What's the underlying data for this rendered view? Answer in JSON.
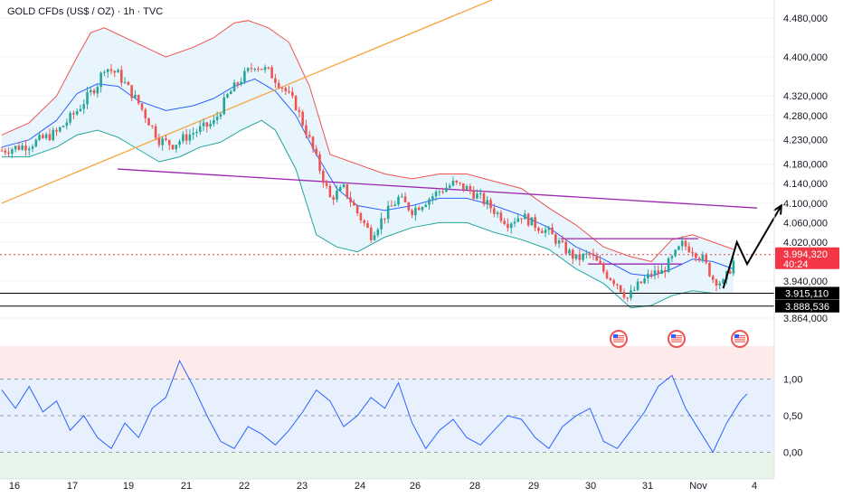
{
  "header": {
    "title": "GOLD CFDs (US$ / OZ) · 1h · TVC"
  },
  "colors": {
    "up": "#26a69a",
    "down": "#ef5350",
    "bb_upper": "#ef5350",
    "bb_lower": "#26a69a",
    "bb_basis": "#2962ff",
    "bb_fill": "#e3f2fd",
    "rising_line": "#f7a440",
    "falling_line": "#9c27b0",
    "rsi": "#2962ff",
    "price_label": "#f23645"
  },
  "icons": [
    "us-flag-icon",
    "us-flag-icon",
    "us-flag-icon"
  ],
  "chart_data": [
    {
      "type": "candlestick",
      "title": "GOLD CFDs (US$ / OZ) · 1h · TVC",
      "x_tick_labels": [
        "16",
        "17",
        "19",
        "21",
        "22",
        "23",
        "24",
        "26",
        "28",
        "29",
        "30",
        "31",
        "Nov",
        "4"
      ],
      "y_tick_labels": [
        "4.480,000",
        "4.400,000",
        "4.320,000",
        "4.280,000",
        "4.230,000",
        "4.180,000",
        "4.140,000",
        "4.100,000",
        "4.060,000",
        "4.020,000",
        "3.940,000",
        "3.864,000"
      ],
      "ylim": [
        3850,
        4520
      ],
      "current_price": {
        "value": "3.994,320",
        "countdown": "40:24"
      },
      "support_levels": [
        {
          "label": "3.915,110",
          "value": 3915.11
        },
        {
          "label": "3.888,536",
          "value": 3888.536
        }
      ],
      "close_path": [
        [
          0,
          4208
        ],
        [
          8,
          4220
        ],
        [
          16,
          4245
        ],
        [
          22,
          4290
        ],
        [
          28,
          4345
        ],
        [
          30,
          4380
        ],
        [
          34,
          4365
        ],
        [
          40,
          4305
        ],
        [
          46,
          4230
        ],
        [
          50,
          4220
        ],
        [
          56,
          4245
        ],
        [
          62,
          4265
        ],
        [
          66,
          4320
        ],
        [
          70,
          4355
        ],
        [
          74,
          4385
        ],
        [
          78,
          4370
        ],
        [
          82,
          4340
        ],
        [
          86,
          4300
        ],
        [
          90,
          4230
        ],
        [
          94,
          4150
        ],
        [
          96,
          4110
        ],
        [
          100,
          4130
        ],
        [
          104,
          4080
        ],
        [
          108,
          4035
        ],
        [
          112,
          4075
        ],
        [
          116,
          4110
        ],
        [
          120,
          4085
        ],
        [
          124,
          4105
        ],
        [
          128,
          4125
        ],
        [
          132,
          4140
        ],
        [
          136,
          4130
        ],
        [
          140,
          4110
        ],
        [
          144,
          4085
        ],
        [
          148,
          4060
        ],
        [
          152,
          4075
        ],
        [
          156,
          4055
        ],
        [
          160,
          4040
        ],
        [
          164,
          4010
        ],
        [
          168,
          3985
        ],
        [
          172,
          3995
        ],
        [
          176,
          3960
        ],
        [
          180,
          3935
        ],
        [
          183,
          3905
        ],
        [
          186,
          3930
        ],
        [
          190,
          3955
        ],
        [
          193,
          3958
        ],
        [
          196,
          3985
        ],
        [
          199,
          4015
        ],
        [
          202,
          4005
        ],
        [
          205,
          3985
        ],
        [
          208,
          3945
        ],
        [
          211,
          3935
        ],
        [
          214,
          3980
        ]
      ],
      "bollinger_bands": {
        "upper": [
          [
            0,
            4240
          ],
          [
            8,
            4265
          ],
          [
            16,
            4320
          ],
          [
            22,
            4400
          ],
          [
            26,
            4450
          ],
          [
            30,
            4460
          ],
          [
            36,
            4440
          ],
          [
            42,
            4420
          ],
          [
            48,
            4400
          ],
          [
            56,
            4420
          ],
          [
            62,
            4440
          ],
          [
            68,
            4470
          ],
          [
            72,
            4475
          ],
          [
            78,
            4460
          ],
          [
            84,
            4430
          ],
          [
            90,
            4340
          ],
          [
            96,
            4200
          ],
          [
            104,
            4180
          ],
          [
            112,
            4160
          ],
          [
            120,
            4150
          ],
          [
            128,
            4160
          ],
          [
            136,
            4160
          ],
          [
            144,
            4145
          ],
          [
            152,
            4130
          ],
          [
            160,
            4090
          ],
          [
            168,
            4055
          ],
          [
            176,
            4010
          ],
          [
            184,
            3990
          ],
          [
            190,
            3980
          ],
          [
            196,
            4025
          ],
          [
            202,
            4035
          ],
          [
            208,
            4020
          ],
          [
            214,
            4005
          ]
        ],
        "basis": [
          [
            0,
            4215
          ],
          [
            8,
            4230
          ],
          [
            16,
            4270
          ],
          [
            22,
            4325
          ],
          [
            28,
            4345
          ],
          [
            34,
            4340
          ],
          [
            40,
            4310
          ],
          [
            48,
            4290
          ],
          [
            56,
            4300
          ],
          [
            62,
            4315
          ],
          [
            68,
            4340
          ],
          [
            74,
            4355
          ],
          [
            80,
            4330
          ],
          [
            86,
            4280
          ],
          [
            92,
            4200
          ],
          [
            98,
            4130
          ],
          [
            104,
            4095
          ],
          [
            112,
            4085
          ],
          [
            120,
            4095
          ],
          [
            128,
            4110
          ],
          [
            136,
            4110
          ],
          [
            144,
            4095
          ],
          [
            152,
            4075
          ],
          [
            160,
            4050
          ],
          [
            168,
            4010
          ],
          [
            176,
            3985
          ],
          [
            184,
            3955
          ],
          [
            190,
            3950
          ],
          [
            196,
            3965
          ],
          [
            202,
            3985
          ],
          [
            208,
            3980
          ],
          [
            214,
            3965
          ]
        ],
        "lower": [
          [
            0,
            4195
          ],
          [
            8,
            4195
          ],
          [
            16,
            4215
          ],
          [
            22,
            4240
          ],
          [
            28,
            4250
          ],
          [
            34,
            4235
          ],
          [
            40,
            4210
          ],
          [
            46,
            4185
          ],
          [
            52,
            4195
          ],
          [
            58,
            4215
          ],
          [
            64,
            4225
          ],
          [
            70,
            4250
          ],
          [
            76,
            4270
          ],
          [
            80,
            4250
          ],
          [
            86,
            4170
          ],
          [
            92,
            4035
          ],
          [
            98,
            4010
          ],
          [
            104,
            4000
          ],
          [
            112,
            4030
          ],
          [
            120,
            4050
          ],
          [
            128,
            4060
          ],
          [
            136,
            4060
          ],
          [
            144,
            4040
          ],
          [
            152,
            4025
          ],
          [
            160,
            4005
          ],
          [
            168,
            3965
          ],
          [
            176,
            3935
          ],
          [
            184,
            3885
          ],
          [
            190,
            3890
          ],
          [
            196,
            3910
          ],
          [
            202,
            3920
          ],
          [
            208,
            3915
          ],
          [
            214,
            3915
          ]
        ]
      },
      "trendlines": [
        {
          "name": "rising",
          "from": [
            0,
            4100
          ],
          "to": [
            146,
            4525
          ]
        },
        {
          "name": "falling",
          "from": [
            32,
            4170
          ],
          "to": [
            208,
            4090
          ]
        },
        {
          "name": "range-high",
          "from": [
            199,
            4027
          ],
          "to": [
            193.5,
            4027
          ]
        },
        {
          "name": "range-low",
          "from": [
            205,
            3975
          ],
          "to": [
            189,
            3975
          ]
        }
      ],
      "projection": [
        [
          211,
          3925
        ],
        [
          215,
          4020
        ],
        [
          218,
          3975
        ],
        [
          228,
          4095
        ]
      ]
    },
    {
      "type": "line",
      "name": "RSI-style oscillator",
      "y_tick_labels": [
        "1,00",
        "0,50",
        "0,00"
      ],
      "ylim": [
        -0.2,
        1.3
      ],
      "levels": [
        1.0,
        0.5,
        0.0
      ],
      "x": [
        0,
        4,
        8,
        12,
        16,
        20,
        24,
        28,
        32,
        36,
        40,
        44,
        48,
        52,
        56,
        60,
        64,
        68,
        72,
        76,
        80,
        84,
        88,
        92,
        96,
        100,
        104,
        108,
        112,
        116,
        120,
        124,
        128,
        132,
        136,
        140,
        144,
        148,
        152,
        156,
        160,
        164,
        168,
        172,
        176,
        180,
        184,
        188,
        192,
        196,
        200,
        204,
        208,
        212,
        216,
        218
      ],
      "values": [
        0.85,
        0.6,
        0.9,
        0.55,
        0.7,
        0.3,
        0.5,
        0.2,
        0.05,
        0.4,
        0.2,
        0.6,
        0.75,
        1.25,
        0.9,
        0.5,
        0.15,
        0.05,
        0.35,
        0.25,
        0.1,
        0.3,
        0.55,
        0.85,
        0.7,
        0.35,
        0.5,
        0.75,
        0.6,
        0.95,
        0.4,
        0.05,
        0.3,
        0.45,
        0.2,
        0.1,
        0.3,
        0.5,
        0.45,
        0.2,
        0.05,
        0.35,
        0.5,
        0.6,
        0.15,
        0.05,
        0.3,
        0.55,
        0.9,
        1.05,
        0.6,
        0.3,
        0.0,
        0.4,
        0.7,
        0.8
      ]
    }
  ]
}
